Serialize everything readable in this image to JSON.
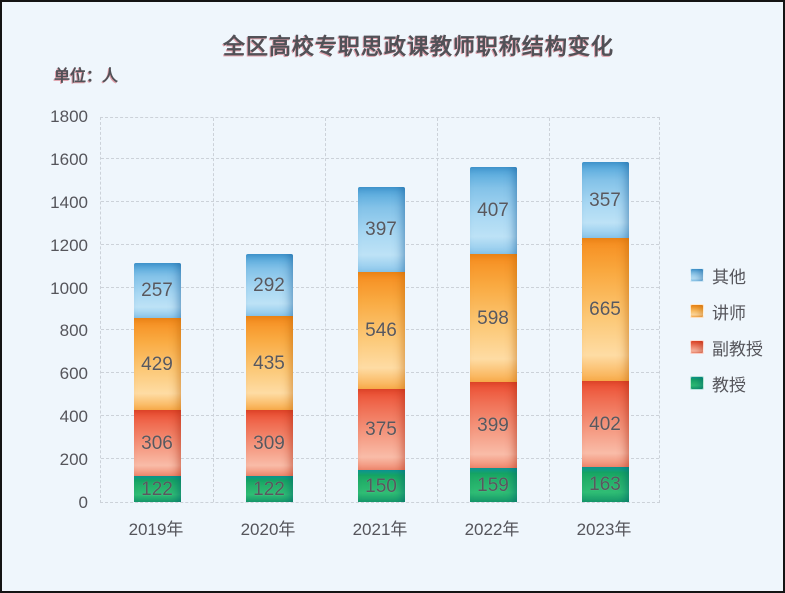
{
  "title": "全区高校专职思政课教师职称结构变化",
  "unit_label": "单位：人",
  "colors": {
    "background": "#eff6fc",
    "frame_border": "#141414",
    "gridline": "#ccd2d9",
    "text": "#55555b",
    "title_text": "#515157",
    "title_fringe": "#cd3746"
  },
  "chart_data": {
    "type": "bar",
    "stacked": true,
    "title": "全区高校专职思政课教师职称结构变化",
    "unit": "单位：人",
    "categories": [
      "2019年",
      "2020年",
      "2021年",
      "2022年",
      "2023年"
    ],
    "series": [
      {
        "name": "教授",
        "color": "#1ca666",
        "values": [
          122,
          122,
          150,
          159,
          163
        ]
      },
      {
        "name": "副教授",
        "color": "#ee5a3a",
        "values": [
          306,
          309,
          375,
          399,
          402
        ]
      },
      {
        "name": "讲师",
        "color": "#f8a01d",
        "values": [
          429,
          435,
          546,
          598,
          665
        ]
      },
      {
        "name": "其他",
        "color": "#63b1e5",
        "values": [
          257,
          292,
          397,
          407,
          357
        ]
      }
    ],
    "totals": [
      1114,
      1158,
      1468,
      1563,
      1587
    ],
    "legend_order": [
      "其他",
      "讲师",
      "副教授",
      "教授"
    ],
    "legend_position": "right",
    "xlabel": "",
    "ylabel": "",
    "ylim": [
      0,
      1800
    ],
    "ytick_step": 200,
    "yticks": [
      0,
      200,
      400,
      600,
      800,
      1000,
      1200,
      1400,
      1600,
      1800
    ],
    "grid": true,
    "grid_style": "dashed",
    "value_labels": true
  }
}
